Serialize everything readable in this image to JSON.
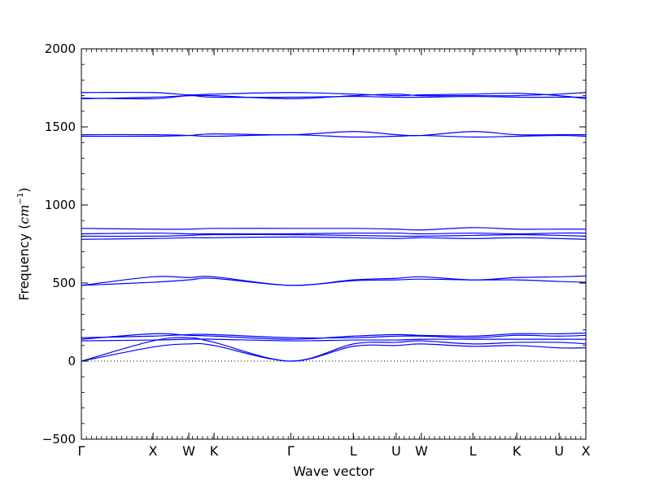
{
  "chart_data": {
    "type": "line",
    "title": "",
    "xlabel": "Wave vector",
    "ylabel_prefix": "Frequency (",
    "ylabel_math": "cm",
    "ylabel_sup": "−1",
    "ylabel_suffix": ")",
    "ylim": [
      -500,
      2000
    ],
    "xlim": [
      0,
      1
    ],
    "yticks": [
      {
        "value": -500,
        "label": "−500"
      },
      {
        "value": 0,
        "label": "0"
      },
      {
        "value": 500,
        "label": "500"
      },
      {
        "value": 1000,
        "label": "1000"
      },
      {
        "value": 1500,
        "label": "1500"
      },
      {
        "value": 2000,
        "label": "2000"
      }
    ],
    "xticks": [
      {
        "x": 0.0,
        "label": "Γ"
      },
      {
        "x": 0.142,
        "label": "X"
      },
      {
        "x": 0.213,
        "label": "W"
      },
      {
        "x": 0.263,
        "label": "K"
      },
      {
        "x": 0.415,
        "label": "Γ"
      },
      {
        "x": 0.539,
        "label": "L"
      },
      {
        "x": 0.624,
        "label": "U"
      },
      {
        "x": 0.674,
        "label": "W"
      },
      {
        "x": 0.776,
        "label": "L"
      },
      {
        "x": 0.863,
        "label": "K"
      },
      {
        "x": 0.947,
        "label": "U"
      },
      {
        "x": 1.0,
        "label": "X"
      }
    ],
    "zero_line": {
      "y": 0,
      "style": "dotted"
    },
    "grid": false,
    "line_color": "#0000ff",
    "series": [
      {
        "x": [
          0,
          0.142,
          0.213,
          0.263,
          0.415,
          0.539,
          0.624,
          0.674,
          0.776,
          0.863,
          0.947,
          1.0
        ],
        "values": [
          0,
          90,
          110,
          100,
          0,
          95,
          100,
          110,
          95,
          100,
          85,
          85
        ]
      },
      {
        "x": [
          0,
          0.142,
          0.213,
          0.263,
          0.415,
          0.539,
          0.624,
          0.674,
          0.776,
          0.863,
          0.947,
          1.0
        ],
        "values": [
          0,
          130,
          150,
          120,
          0,
          110,
          120,
          130,
          110,
          120,
          120,
          110
        ]
      },
      {
        "x": [
          0,
          0.142,
          0.213,
          0.263,
          0.415,
          0.539,
          0.624,
          0.674,
          0.776,
          0.863,
          0.947,
          1.0
        ],
        "values": [
          140,
          175,
          165,
          160,
          140,
          160,
          170,
          165,
          160,
          175,
          175,
          180
        ]
      },
      {
        "x": [
          0,
          0.142,
          0.213,
          0.263,
          0.415,
          0.539,
          0.624,
          0.674,
          0.776,
          0.863,
          0.947,
          1.0
        ],
        "values": [
          150,
          160,
          170,
          170,
          150,
          150,
          160,
          160,
          150,
          165,
          160,
          165
        ]
      },
      {
        "x": [
          0,
          0.142,
          0.213,
          0.263,
          0.415,
          0.539,
          0.624,
          0.674,
          0.776,
          0.863,
          0.947,
          1.0
        ],
        "values": [
          130,
          135,
          140,
          140,
          130,
          135,
          135,
          140,
          140,
          140,
          140,
          140
        ]
      },
      {
        "x": [
          0,
          0.142,
          0.213,
          0.263,
          0.415,
          0.539,
          0.624,
          0.674,
          0.776,
          0.863,
          0.947,
          1.0
        ],
        "values": [
          485,
          540,
          535,
          540,
          485,
          520,
          530,
          540,
          520,
          535,
          540,
          545
        ]
      },
      {
        "x": [
          0,
          0.142,
          0.213,
          0.263,
          0.415,
          0.539,
          0.624,
          0.674,
          0.776,
          0.863,
          0.947,
          1.0
        ],
        "values": [
          485,
          505,
          520,
          530,
          485,
          515,
          520,
          525,
          520,
          520,
          510,
          505
        ]
      },
      {
        "x": [
          0,
          0.142,
          0.213,
          0.263,
          0.415,
          0.539,
          0.624,
          0.674,
          0.776,
          0.863,
          0.947,
          1.0
        ],
        "values": [
          780,
          785,
          790,
          790,
          795,
          790,
          785,
          790,
          785,
          790,
          785,
          780
        ]
      },
      {
        "x": [
          0,
          0.142,
          0.213,
          0.263,
          0.415,
          0.539,
          0.624,
          0.674,
          0.776,
          0.863,
          0.947,
          1.0
        ],
        "values": [
          800,
          800,
          805,
          810,
          810,
          805,
          800,
          800,
          805,
          810,
          805,
          800
        ]
      },
      {
        "x": [
          0,
          0.142,
          0.213,
          0.263,
          0.415,
          0.539,
          0.624,
          0.674,
          0.776,
          0.863,
          0.947,
          1.0
        ],
        "values": [
          815,
          820,
          815,
          815,
          815,
          820,
          820,
          815,
          820,
          815,
          820,
          820
        ]
      },
      {
        "x": [
          0,
          0.142,
          0.213,
          0.263,
          0.415,
          0.539,
          0.624,
          0.674,
          0.776,
          0.863,
          0.947,
          1.0
        ],
        "values": [
          850,
          845,
          845,
          850,
          850,
          850,
          845,
          840,
          855,
          845,
          845,
          845
        ]
      },
      {
        "x": [
          0,
          0.142,
          0.213,
          0.263,
          0.415,
          0.539,
          0.624,
          0.674,
          0.776,
          0.863,
          0.947,
          1.0
        ],
        "values": [
          1440,
          1440,
          1445,
          1455,
          1450,
          1470,
          1450,
          1445,
          1470,
          1450,
          1450,
          1450
        ]
      },
      {
        "x": [
          0,
          0.142,
          0.213,
          0.263,
          0.415,
          0.539,
          0.624,
          0.674,
          0.776,
          0.863,
          0.947,
          1.0
        ],
        "values": [
          1450,
          1450,
          1445,
          1440,
          1450,
          1435,
          1440,
          1445,
          1435,
          1440,
          1445,
          1440
        ]
      },
      {
        "x": [
          0,
          0.142,
          0.213,
          0.263,
          0.415,
          0.539,
          0.624,
          0.674,
          0.776,
          0.863,
          0.947,
          1.0
        ],
        "values": [
          1680,
          1690,
          1700,
          1700,
          1680,
          1700,
          1710,
          1700,
          1700,
          1700,
          1710,
          1720
        ]
      },
      {
        "x": [
          0,
          0.142,
          0.213,
          0.263,
          0.415,
          0.539,
          0.624,
          0.674,
          0.776,
          0.863,
          0.947,
          1.0
        ],
        "values": [
          1720,
          1720,
          1705,
          1710,
          1720,
          1710,
          1700,
          1705,
          1710,
          1715,
          1700,
          1680
        ]
      },
      {
        "x": [
          0,
          0.142,
          0.213,
          0.263,
          0.415,
          0.539,
          0.624,
          0.674,
          0.776,
          0.863,
          0.947,
          1.0
        ],
        "values": [
          1685,
          1680,
          1700,
          1690,
          1690,
          1695,
          1690,
          1690,
          1695,
          1690,
          1690,
          1690
        ]
      }
    ]
  }
}
